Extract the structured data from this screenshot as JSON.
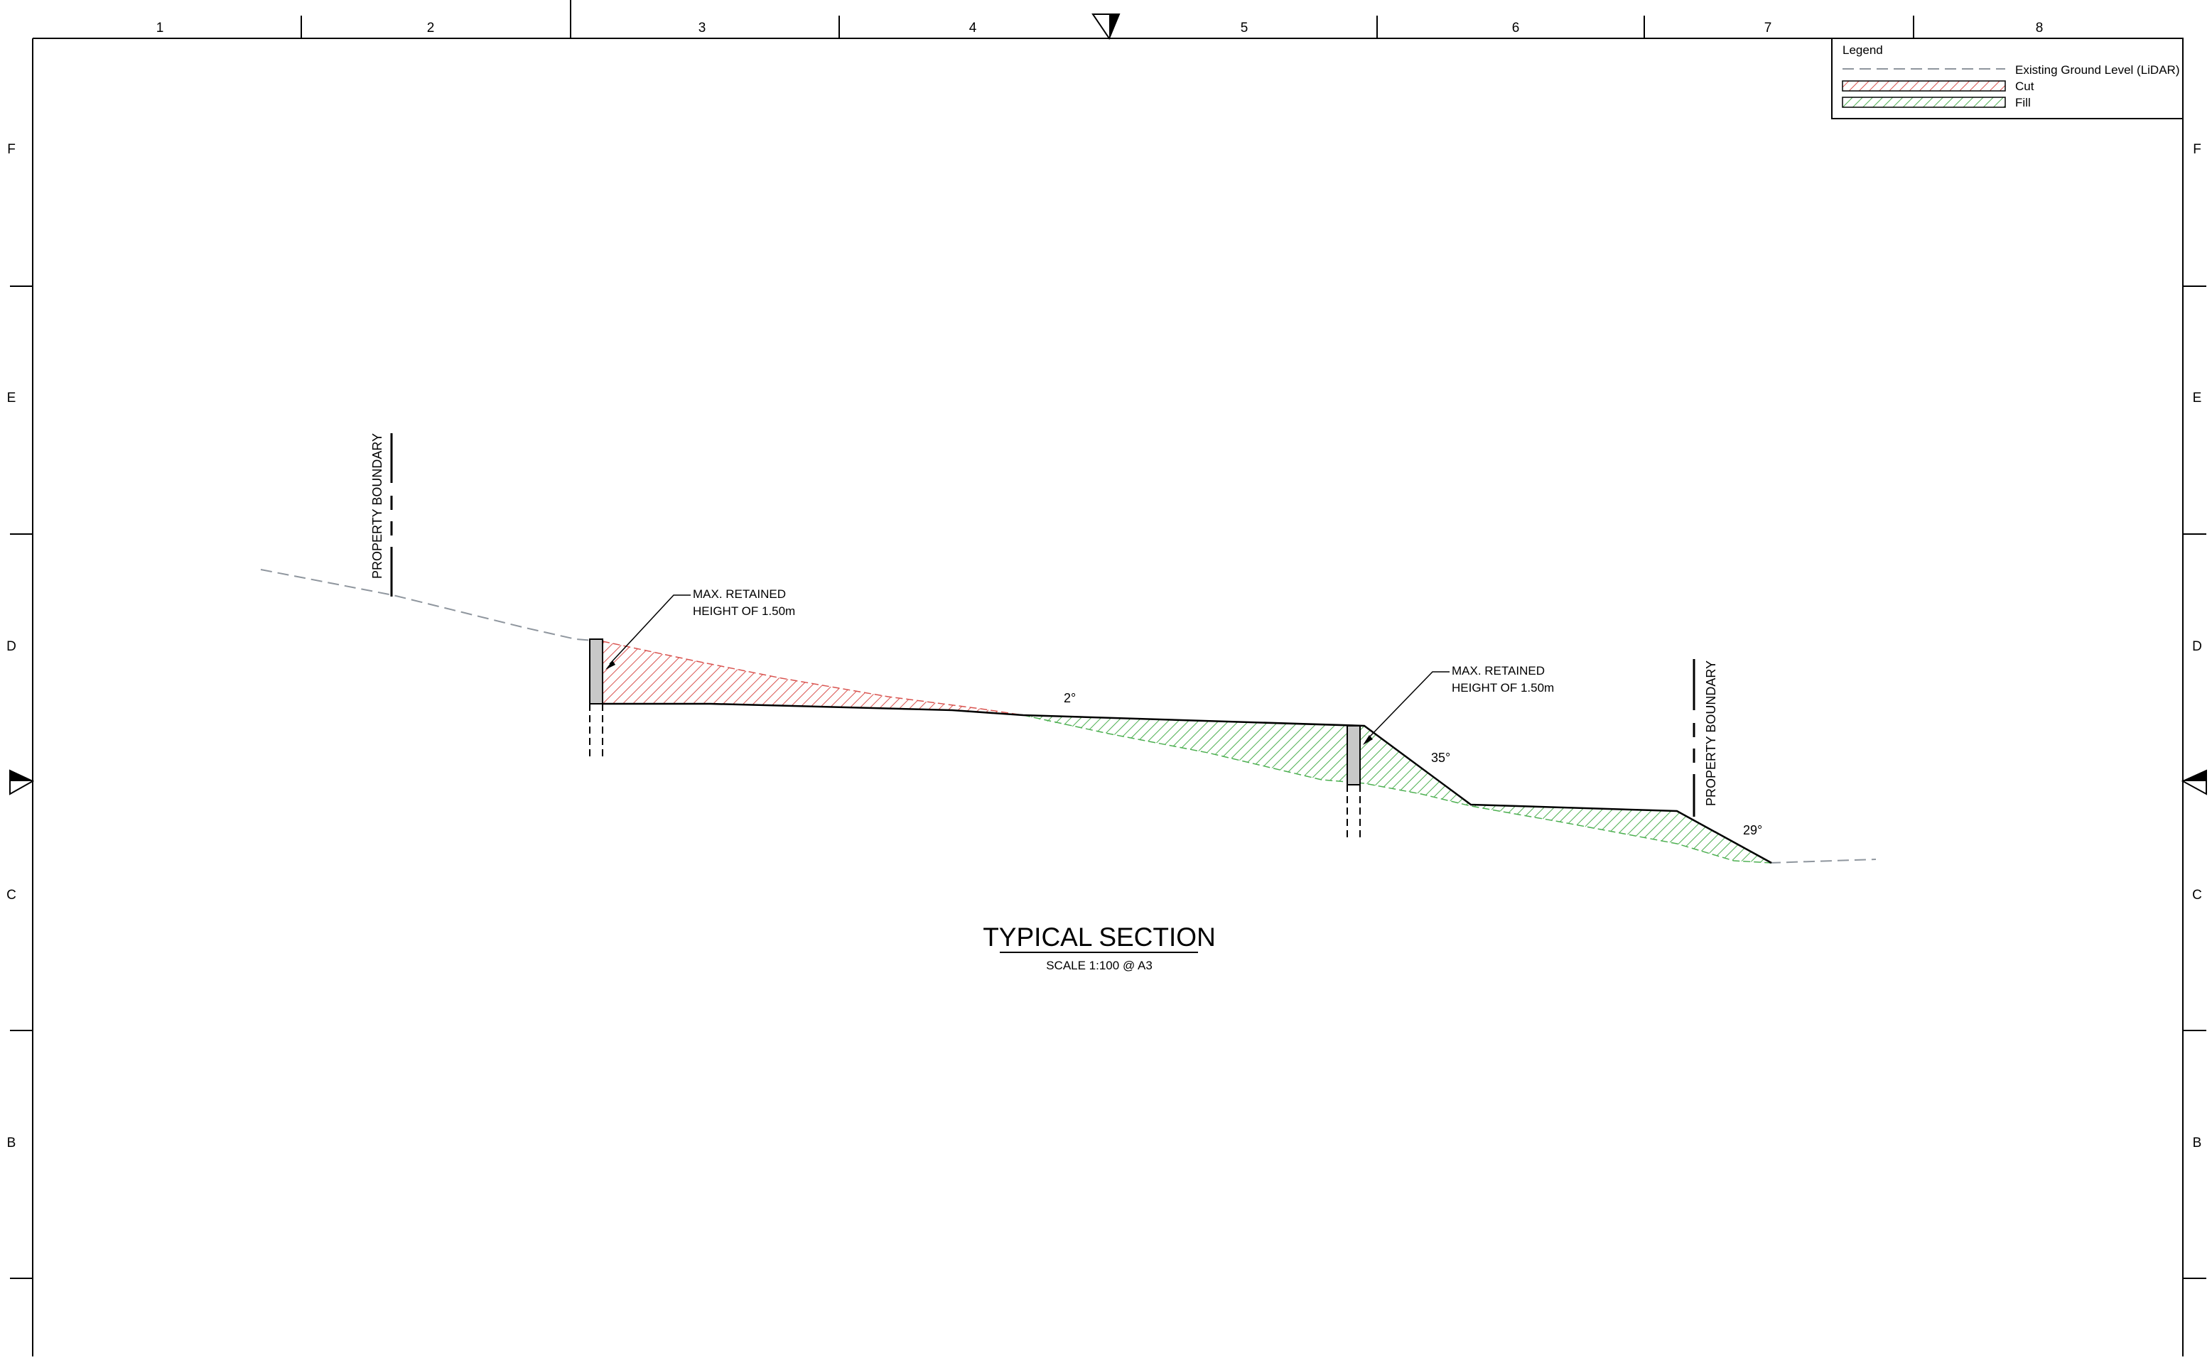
{
  "sheet": {
    "columns": [
      "1",
      "2",
      "3",
      "4",
      "5",
      "6",
      "7",
      "8"
    ],
    "rows": [
      "F",
      "E",
      "D",
      "C",
      "B"
    ]
  },
  "legend": {
    "title": "Legend",
    "items": [
      {
        "key": "existing",
        "label": "Existing Ground Level (LiDAR)",
        "color": "#9aa3ad"
      },
      {
        "key": "cut",
        "label": "Cut",
        "color": "#d9534f"
      },
      {
        "key": "fill",
        "label": "Fill",
        "color": "#4caf50"
      }
    ]
  },
  "annotations": {
    "property_boundary": "PROPERTY BOUNDARY",
    "wall_note_line1": "MAX. RETAINED",
    "wall_note_line2": "HEIGHT OF 1.50m",
    "angle_2": "2°",
    "angle_35": "35°",
    "angle_29": "29°"
  },
  "title_block": {
    "title": "TYPICAL SECTION",
    "scale": "SCALE 1:100 @ A3"
  },
  "colors": {
    "cut_hatch": "#d9534f",
    "fill_hatch": "#4caf50",
    "existing_ground": "#8f969e",
    "wall": "#c8c8c8"
  }
}
